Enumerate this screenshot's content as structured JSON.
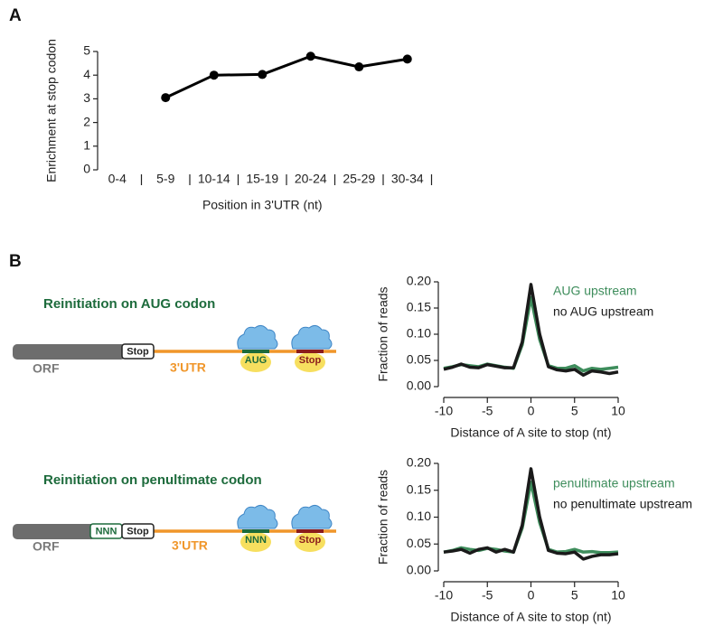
{
  "panel_labels": [
    "A",
    "B"
  ],
  "chart_data": [
    {
      "type": "line",
      "categories": [
        "0-4",
        "5-9",
        "10-14",
        "15-19",
        "20-24",
        "25-29",
        "30-34"
      ],
      "values": [
        null,
        3.05,
        4.0,
        4.03,
        4.8,
        4.35,
        4.68
      ],
      "color": "#000000",
      "markers": true,
      "ylim": [
        0,
        5
      ],
      "yticks": [
        0,
        1,
        2,
        3,
        4,
        5
      ],
      "ylabel": "Enrichment at stop codon",
      "xlabel": "Position in 3'UTR (nt)"
    },
    {
      "type": "line",
      "x": [
        -10,
        -9,
        -8,
        -7,
        -6,
        -5,
        -4,
        -3,
        -2,
        -1,
        0,
        1,
        2,
        3,
        4,
        5,
        6,
        7,
        8,
        9,
        10
      ],
      "series": [
        {
          "name": "AUG upstream",
          "color": "#3e8d5c",
          "values": [
            0.035,
            0.038,
            0.042,
            0.04,
            0.038,
            0.043,
            0.04,
            0.037,
            0.035,
            0.08,
            0.17,
            0.09,
            0.04,
            0.035,
            0.035,
            0.04,
            0.03,
            0.035,
            0.033,
            0.035,
            0.037
          ]
        },
        {
          "name": "no AUG upstream",
          "color": "#1a1a1a",
          "values": [
            0.033,
            0.037,
            0.043,
            0.037,
            0.036,
            0.042,
            0.039,
            0.036,
            0.036,
            0.085,
            0.195,
            0.1,
            0.038,
            0.032,
            0.03,
            0.033,
            0.022,
            0.03,
            0.028,
            0.025,
            0.028
          ]
        }
      ],
      "xlim": [
        -10,
        10
      ],
      "xticks": [
        -10,
        -5,
        0,
        5,
        10
      ],
      "ylim": [
        0,
        0.2
      ],
      "yticks": [
        {
          "value": 0,
          "label": "0.00"
        },
        0.05,
        {
          "value": 0.1,
          "label": "0.10"
        },
        0.15,
        {
          "value": 0.2,
          "label": "0.20"
        }
      ],
      "ylabel": "Fraction of reads",
      "xlabel": "Distance of A site to stop (nt)"
    },
    {
      "type": "line",
      "x": [
        -10,
        -9,
        -8,
        -7,
        -6,
        -5,
        -4,
        -3,
        -2,
        -1,
        0,
        1,
        2,
        3,
        4,
        5,
        6,
        7,
        8,
        9,
        10
      ],
      "series": [
        {
          "name": "penultimate upstream",
          "color": "#3e8d5c",
          "values": [
            0.035,
            0.038,
            0.043,
            0.04,
            0.038,
            0.042,
            0.04,
            0.037,
            0.035,
            0.08,
            0.165,
            0.09,
            0.04,
            0.035,
            0.036,
            0.04,
            0.035,
            0.036,
            0.034,
            0.034,
            0.035
          ]
        },
        {
          "name": "no penultimate upstream",
          "color": "#1a1a1a",
          "values": [
            0.035,
            0.037,
            0.04,
            0.033,
            0.04,
            0.043,
            0.035,
            0.04,
            0.035,
            0.085,
            0.19,
            0.1,
            0.038,
            0.033,
            0.032,
            0.035,
            0.022,
            0.027,
            0.03,
            0.03,
            0.032
          ]
        }
      ],
      "xlim": [
        -10,
        10
      ],
      "xticks": [
        -10,
        -5,
        0,
        5,
        10
      ],
      "ylim": [
        0,
        0.2
      ],
      "yticks": [
        {
          "value": 0,
          "label": "0.00"
        },
        0.05,
        {
          "value": 0.1,
          "label": "0.10"
        },
        0.15,
        {
          "value": 0.2,
          "label": "0.20"
        }
      ],
      "ylabel": "Fraction of reads",
      "xlabel": "Distance of A site to stop (nt)"
    }
  ],
  "diagrams": [
    {
      "title": "Reinitiation on AUG codon",
      "orf": "ORF",
      "stop": "Stop",
      "utr": "3'UTR",
      "site1": "AUG",
      "site2": "Stop"
    },
    {
      "title": "Reinitiation on penultimate codon",
      "orf": "ORF",
      "nnn": "NNN",
      "stop": "Stop",
      "utr": "3'UTR",
      "site1": "NNN",
      "site2": "Stop"
    }
  ]
}
